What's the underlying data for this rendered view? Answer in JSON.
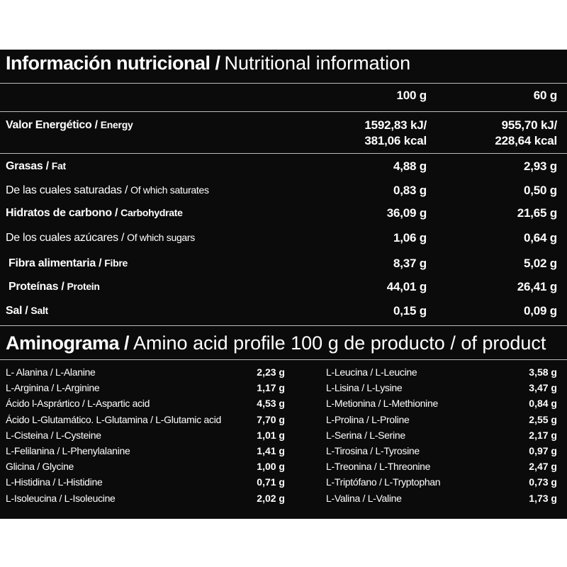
{
  "title": {
    "es": "Información nutricional /",
    "en": "Nutritional information"
  },
  "columns": [
    "100 g",
    "60 g"
  ],
  "energy": {
    "es": "Valor Energético /",
    "en": "Energy",
    "v100": [
      "1592,83 kJ/",
      "381,06 kcal"
    ],
    "v60": [
      "955,70 kJ/",
      "228,64 kcal"
    ]
  },
  "nutrients": [
    {
      "es": "Grasas /",
      "en": "Fat",
      "v100": "4,88 g",
      "v60": "2,93 g"
    },
    {
      "es": "De las cuales saturadas /",
      "en": "Of which saturates",
      "v100": "0,83 g",
      "v60": "0,50 g"
    },
    {
      "es": "Hidratos de carbono /",
      "en": "Carbohydrate",
      "v100": "36,09 g",
      "v60": "21,65 g"
    },
    {
      "es": "De los cuales azúcares /",
      "en": "Of which sugars",
      "v100": "1,06 g",
      "v60": "0,64 g"
    },
    {
      "es": "Fibra alimentaria /",
      "en": "Fibre",
      "v100": "8,37 g",
      "v60": "5,02 g"
    },
    {
      "es": "Proteínas /",
      "en": "Protein",
      "v100": "44,01 g",
      "v60": "26,41 g"
    },
    {
      "es": "Sal /",
      "en": "Salt",
      "v100": "0,15 g",
      "v60": "0,09 g"
    }
  ],
  "amino_title": {
    "es": "Aminograma /",
    "en": "Amino acid profile 100 g de producto / of product"
  },
  "amino_left": [
    {
      "name": "L- Alanina / L-Alanine",
      "value": "2,23 g"
    },
    {
      "name": "L-Arginina / L-Arginine",
      "value": "1,17 g"
    },
    {
      "name": "Ácido l-Asprártico / L-Aspartic acid",
      "value": "4,53 g"
    },
    {
      "name": "Ácido L-Glutamático. L-Glutamina / L-Glutamic acid",
      "value": "7,70 g"
    },
    {
      "name": "L-Cisteina / L-Cysteine",
      "value": "1,01 g"
    },
    {
      "name": "L-Felilanina / L-Phenylalanine",
      "value": "1,41 g"
    },
    {
      "name": "Glicina / Glycine",
      "value": "1,00 g"
    },
    {
      "name": "L-Histidina / L-Histidine",
      "value": "0,71 g"
    },
    {
      "name": "L-Isoleucina / L-Isoleucine",
      "value": "2,02 g"
    }
  ],
  "amino_right": [
    {
      "name": "L-Leucina / L-Leucine",
      "value": "3,58 g"
    },
    {
      "name": "L-Lisina / L-Lysine",
      "value": "3,47 g"
    },
    {
      "name": "L-Metionina / L-Methionine",
      "value": "0,84 g"
    },
    {
      "name": "L-Prolina / L-Proline",
      "value": "2,55 g"
    },
    {
      "name": "L-Serina / L-Serine",
      "value": "2,17 g"
    },
    {
      "name": "L-Tirosina / L-Tyrosine",
      "value": "0,97 g"
    },
    {
      "name": "L-Treonina / L-Threonine",
      "value": "2,47 g"
    },
    {
      "name": "L-Triptófano / L-Tryptophan",
      "value": "0,73 g"
    },
    {
      "name": "L-Valina / L-Valine",
      "value": "1,73 g"
    }
  ]
}
